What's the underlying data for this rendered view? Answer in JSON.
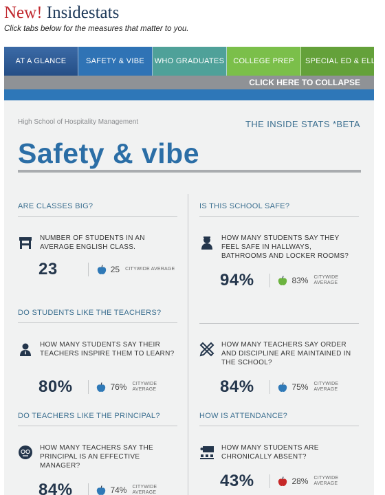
{
  "header": {
    "new_label": "New!",
    "title": "Insidestats",
    "subtitle": "Click tabs below for the measures that matter to you."
  },
  "tabs": [
    {
      "label": "AT A GLANCE"
    },
    {
      "label": "SAFETY & VIBE",
      "active": true
    },
    {
      "label": "WHO GRADUATES"
    },
    {
      "label": "COLLEGE PREP"
    },
    {
      "label": "SPECIAL ED & ELL"
    }
  ],
  "collapse_label": "CLICK HERE TO COLLAPSE",
  "school_name": "High School of Hospitality Management",
  "inside_stats_label": "THE INSIDE STATS *BETA",
  "page_title": "Safety & vibe",
  "citywide_label": "CITYWIDE AVERAGE",
  "colors": {
    "apple_blue": "#2f79b7",
    "apple_green": "#6cb33f",
    "apple_red": "#c62828"
  },
  "sections": [
    {
      "question": "ARE CLASSES BIG?",
      "icon": "desk-icon",
      "description": "NUMBER OF STUDENTS IN AN AVERAGE ENGLISH CLASS.",
      "value": "23",
      "citywide_value": "25",
      "apple": "blue"
    },
    {
      "question": "IS THIS SCHOOL SAFE?",
      "icon": "student-icon",
      "description": "HOW MANY STUDENTS SAY THEY FEEL SAFE IN HALLWAYS, BATHROOMS AND LOCKER ROOMS?",
      "value": "94%",
      "citywide_value": "83%",
      "apple": "green"
    },
    {
      "question": "DO STUDENTS LIKE THE TEACHERS?",
      "icon": "teacher-icon",
      "description": "HOW MANY STUDENTS SAY THEIR TEACHERS INSPIRE THEM TO LEARN?",
      "value": "80%",
      "citywide_value": "76%",
      "apple": "blue"
    },
    {
      "question": "",
      "icon": "ruler-pencil-icon",
      "description": "HOW MANY TEACHERS SAY ORDER AND DISCIPLINE ARE MAINTAINED IN THE SCHOOL?",
      "value": "84%",
      "citywide_value": "75%",
      "apple": "blue"
    },
    {
      "question": "DO TEACHERS LIKE THE PRINCIPAL?",
      "icon": "principal-icon",
      "description": "HOW MANY TEACHERS SAY THE PRINCIPAL IS AN EFFECTIVE MANAGER?",
      "value": "84%",
      "citywide_value": "74%",
      "apple": "blue"
    },
    {
      "question": "HOW IS ATTENDANCE?",
      "icon": "classroom-icon",
      "description": "HOW MANY STUDENTS ARE CHRONICALLY ABSENT?",
      "value": "43%",
      "citywide_value": "28%",
      "apple": "red"
    }
  ]
}
